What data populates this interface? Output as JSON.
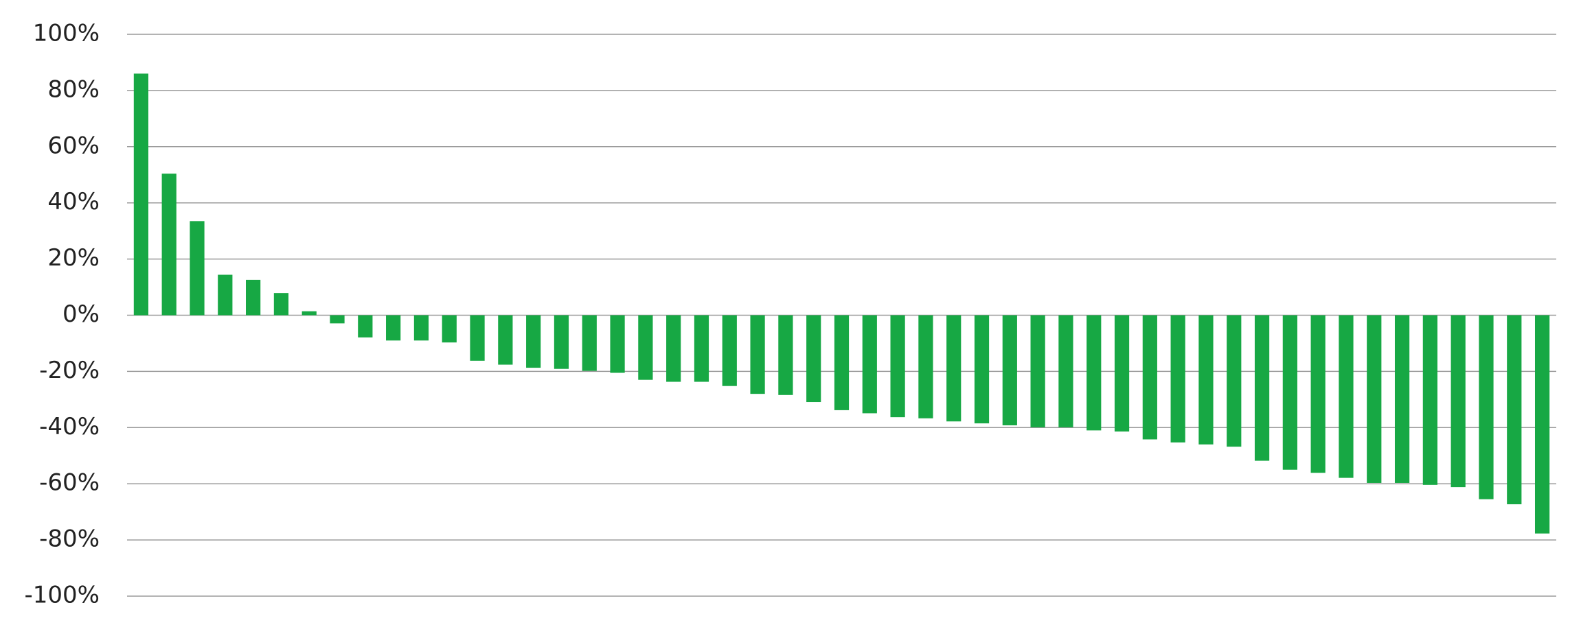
{
  "chart_data": {
    "type": "bar",
    "categories": [
      null,
      null,
      null,
      null,
      null,
      null,
      null,
      null,
      null,
      null,
      null,
      null,
      null,
      null,
      null,
      null,
      null,
      null,
      null,
      null,
      null,
      null,
      null,
      null,
      null,
      null,
      null,
      null,
      null,
      null,
      null,
      null,
      null,
      null,
      null,
      null,
      null,
      null,
      null,
      null,
      null,
      null,
      null,
      null,
      null,
      null,
      null,
      null,
      null,
      null,
      null
    ],
    "values": [
      86,
      50.4,
      33.5,
      14.4,
      12.6,
      7.9,
      1.4,
      -2.9,
      -7.9,
      -9,
      -9,
      -9.7,
      -16.2,
      -17.6,
      -18.7,
      -19.1,
      -19.8,
      -20.5,
      -23,
      -23.7,
      -23.7,
      -25.2,
      -28,
      -28.4,
      -30.9,
      -33.8,
      -34.9,
      -36.3,
      -36.7,
      -37.8,
      -38.5,
      -39.2,
      -39.9,
      -39.9,
      -41,
      -41.4,
      -44.2,
      -45.3,
      -46,
      -46.8,
      -51.8,
      -55,
      -56.1,
      -57.9,
      -59.7,
      -59.7,
      -60.4,
      -61.2,
      -65.5,
      -67.3,
      -77.7
    ],
    "color": "#17a844",
    "ylim": [
      -100,
      100
    ],
    "yticks": [
      {
        "value": -100,
        "label": "-100%"
      },
      {
        "value": -80,
        "label": "-80%"
      },
      {
        "value": -60,
        "label": "-60%"
      },
      {
        "value": -40,
        "label": "-40%"
      },
      {
        "value": -20,
        "label": "-20%"
      },
      {
        "value": 0,
        "label": "0%"
      },
      {
        "value": 20,
        "label": "20%"
      },
      {
        "value": 40,
        "label": "40%"
      },
      {
        "value": 60,
        "label": "60%"
      },
      {
        "value": 80,
        "label": "80%"
      },
      {
        "value": 100,
        "label": "100%"
      }
    ],
    "grid": true
  }
}
